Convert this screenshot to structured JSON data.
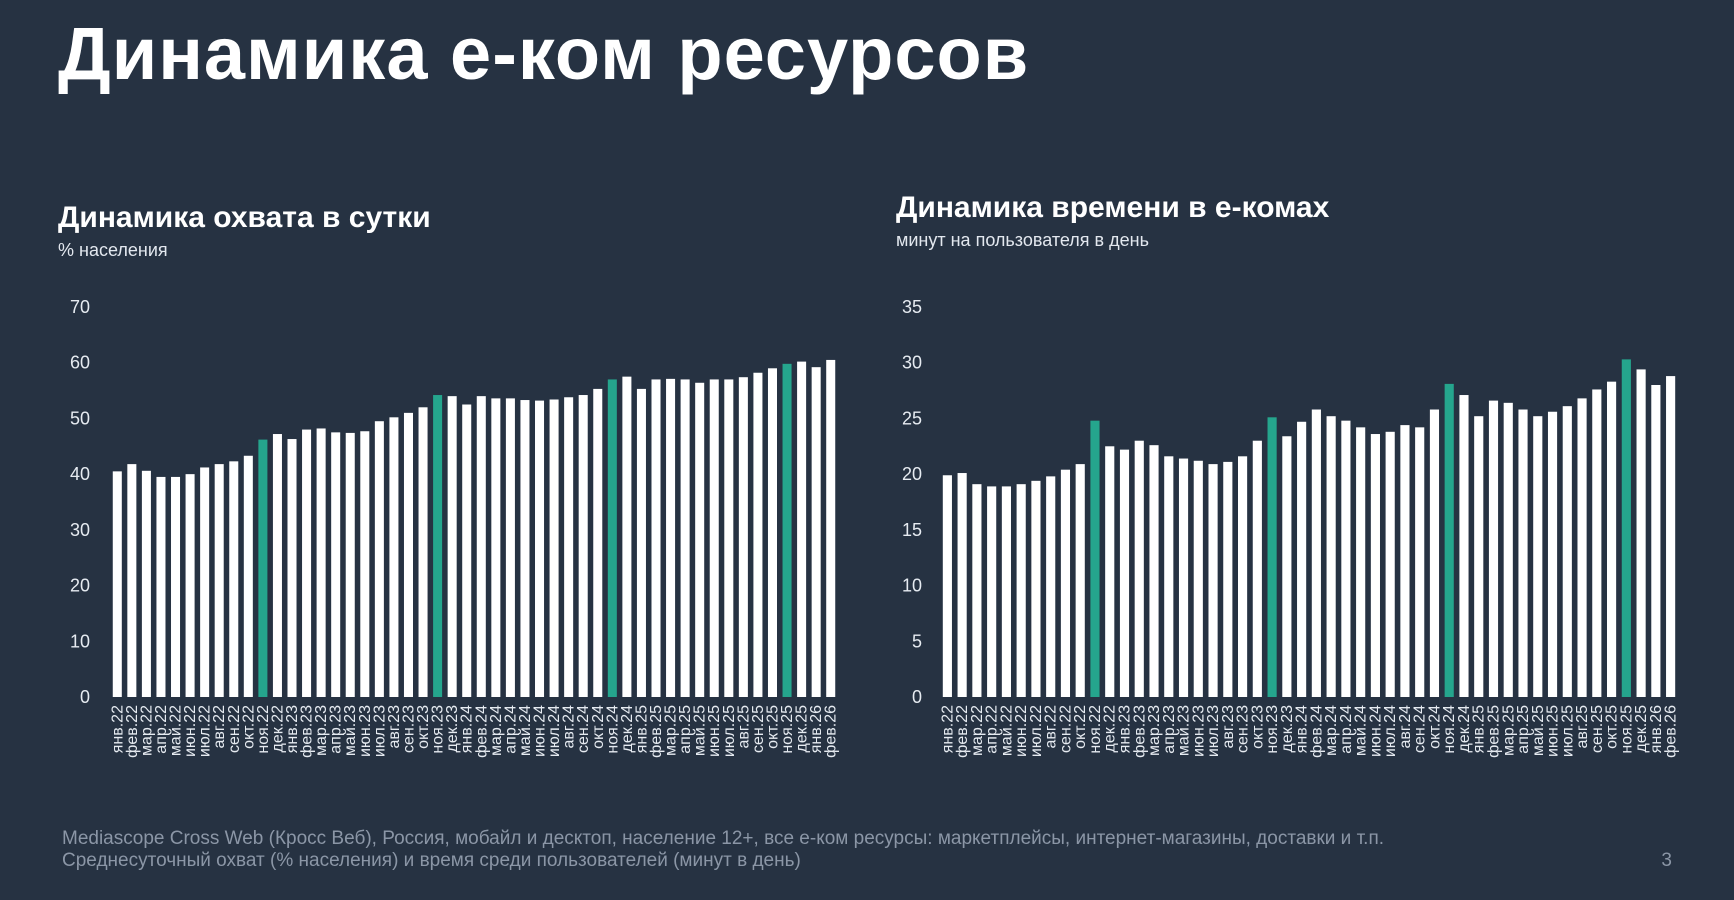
{
  "page": {
    "title": "Динамика е-ком ресурсов",
    "page_number": "3",
    "footer_line1": "Mediascope Cross Web (Кросс Веб), Россия, мобайл и десктоп, население 12+, все е-ком ресурсы: маркетплейсы, интернет-магазины, доставки и т.п.",
    "footer_line2": "Среднесуточный охват (% населения) и время среди пользователей (минут в день)"
  },
  "colors": {
    "background": "#263242",
    "bar_default": "#ffffff",
    "bar_highlight": "#25A58D",
    "axis_text": "#e6ebf1",
    "footer_text": "#8b96a6"
  },
  "chart_data": [
    {
      "type": "bar",
      "title": "Динамика охвата в сутки",
      "subtitle": "% населения",
      "ylim": [
        0,
        70
      ],
      "yticks": [
        0,
        10,
        20,
        30,
        40,
        50,
        60,
        70
      ],
      "xlabel": "",
      "ylabel": "% населения",
      "categories": [
        "янв.22",
        "фев.22",
        "мар.22",
        "апр.22",
        "май.22",
        "июн.22",
        "июл.22",
        "авг.22",
        "сен.22",
        "окт.22",
        "ноя.22",
        "дек.22",
        "янв.23",
        "фев.23",
        "мар.23",
        "апр.23",
        "май.23",
        "июн.23",
        "июл.23",
        "авг.23",
        "сен.23",
        "окт.23",
        "ноя.23",
        "дек.23",
        "янв.24",
        "фев.24",
        "мар.24",
        "апр.24",
        "май.24",
        "июн.24",
        "июл.24",
        "авг.24",
        "сен.24",
        "окт.24",
        "ноя.24",
        "дек.24",
        "янв.25",
        "фев.25",
        "мар.25",
        "апр.25",
        "май.25",
        "июн.25",
        "июл.25",
        "авг.25",
        "сен.25",
        "окт.25",
        "ноя.25",
        "дек.25",
        "янв.26",
        "фев.26"
      ],
      "values": [
        40.5,
        41.8,
        40.6,
        39.5,
        39.5,
        40.0,
        41.2,
        41.8,
        42.3,
        43.3,
        46.2,
        47.2,
        46.3,
        48.0,
        48.2,
        47.5,
        47.4,
        47.7,
        49.5,
        50.2,
        51.0,
        52.0,
        54.2,
        54.0,
        52.5,
        54.0,
        53.6,
        53.6,
        53.3,
        53.2,
        53.4,
        53.8,
        54.2,
        55.3,
        57.0,
        57.5,
        55.3,
        57.0,
        57.1,
        57.0,
        56.4,
        57.0,
        57.0,
        57.4,
        58.2,
        59.0,
        59.8,
        60.2,
        59.2,
        60.5
      ],
      "highlighted": [
        "ноя.22",
        "ноя.23",
        "ноя.24",
        "ноя.25"
      ],
      "grid": false,
      "legend": "none"
    },
    {
      "type": "bar",
      "title": "Динамика времени в е-комах",
      "subtitle": "минут на пользователя в день",
      "ylim": [
        0,
        35
      ],
      "yticks": [
        0,
        5,
        10,
        15,
        20,
        25,
        30,
        35
      ],
      "xlabel": "",
      "ylabel": "минут на пользователя в день",
      "categories": [
        "янв.22",
        "фев.22",
        "мар.22",
        "апр.22",
        "май.22",
        "июн.22",
        "июл.22",
        "авг.22",
        "сен.22",
        "окт.22",
        "ноя.22",
        "дек.22",
        "янв.23",
        "фев.23",
        "мар.23",
        "апр.23",
        "май.23",
        "июн.23",
        "июл.23",
        "авг.23",
        "сен.23",
        "окт.23",
        "ноя.23",
        "дек.23",
        "янв.24",
        "фев.24",
        "мар.24",
        "апр.24",
        "май.24",
        "июн.24",
        "июл.24",
        "авг.24",
        "сен.24",
        "окт.24",
        "ноя.24",
        "дек.24",
        "янв.25",
        "фев.25",
        "мар.25",
        "апр.25",
        "май.25",
        "июн.25",
        "июл.25",
        "авг.25",
        "сен.25",
        "окт.25",
        "ноя.25",
        "дек.25",
        "янв.26",
        "фев.26"
      ],
      "values": [
        19.9,
        20.1,
        19.1,
        18.9,
        18.9,
        19.1,
        19.4,
        19.8,
        20.4,
        20.9,
        24.8,
        22.5,
        22.2,
        23.0,
        22.6,
        21.6,
        21.4,
        21.2,
        20.9,
        21.1,
        21.6,
        23.0,
        25.1,
        23.4,
        24.7,
        25.8,
        25.2,
        24.8,
        24.2,
        23.6,
        23.8,
        24.4,
        24.2,
        25.8,
        28.1,
        27.1,
        25.2,
        26.6,
        26.4,
        25.8,
        25.2,
        25.6,
        26.1,
        26.8,
        27.6,
        28.3,
        30.3,
        29.4,
        28.0,
        28.8
      ],
      "highlighted": [
        "ноя.22",
        "ноя.23",
        "ноя.24",
        "ноя.25"
      ],
      "grid": false,
      "legend": "none"
    }
  ]
}
